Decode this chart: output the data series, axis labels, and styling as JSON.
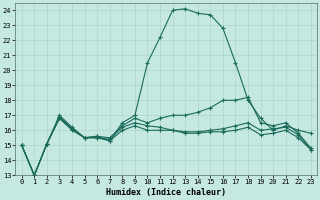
{
  "xlabel": "Humidex (Indice chaleur)",
  "xlim": [
    -0.5,
    23.5
  ],
  "ylim": [
    13,
    24.5
  ],
  "yticks": [
    13,
    14,
    15,
    16,
    17,
    18,
    19,
    20,
    21,
    22,
    23,
    24
  ],
  "xticks": [
    0,
    1,
    2,
    3,
    4,
    5,
    6,
    7,
    8,
    9,
    10,
    11,
    12,
    13,
    14,
    15,
    16,
    17,
    18,
    19,
    20,
    21,
    22,
    23
  ],
  "bg_color": "#c5e8e0",
  "grid_color": "#aed4cc",
  "line_color": "#1a6b5a",
  "line_peak": [
    15.0,
    13.0,
    15.1,
    17.0,
    16.2,
    15.5,
    15.6,
    15.3,
    16.5,
    17.0,
    20.5,
    22.2,
    24.0,
    24.1,
    23.8,
    23.7,
    22.8,
    20.5,
    18.0,
    16.8,
    16.0,
    16.3,
    16.0,
    15.8
  ],
  "line_grad": [
    15.0,
    13.0,
    15.1,
    16.9,
    16.1,
    15.5,
    15.6,
    15.5,
    16.3,
    16.8,
    16.5,
    16.8,
    17.0,
    17.0,
    17.2,
    17.5,
    18.0,
    18.0,
    18.2,
    16.5,
    16.3,
    16.5,
    15.8,
    14.8
  ],
  "line_flat": [
    15.0,
    13.0,
    15.1,
    16.8,
    16.1,
    15.5,
    15.5,
    15.4,
    16.2,
    16.5,
    16.3,
    16.2,
    16.0,
    15.9,
    15.9,
    16.0,
    16.1,
    16.3,
    16.5,
    16.0,
    16.1,
    16.2,
    15.7,
    14.7
  ],
  "line_slow": [
    15.0,
    13.0,
    15.1,
    16.8,
    16.0,
    15.5,
    15.5,
    15.3,
    16.0,
    16.3,
    16.0,
    16.0,
    16.0,
    15.8,
    15.8,
    15.9,
    15.9,
    16.0,
    16.2,
    15.7,
    15.8,
    16.0,
    15.5,
    14.7
  ]
}
